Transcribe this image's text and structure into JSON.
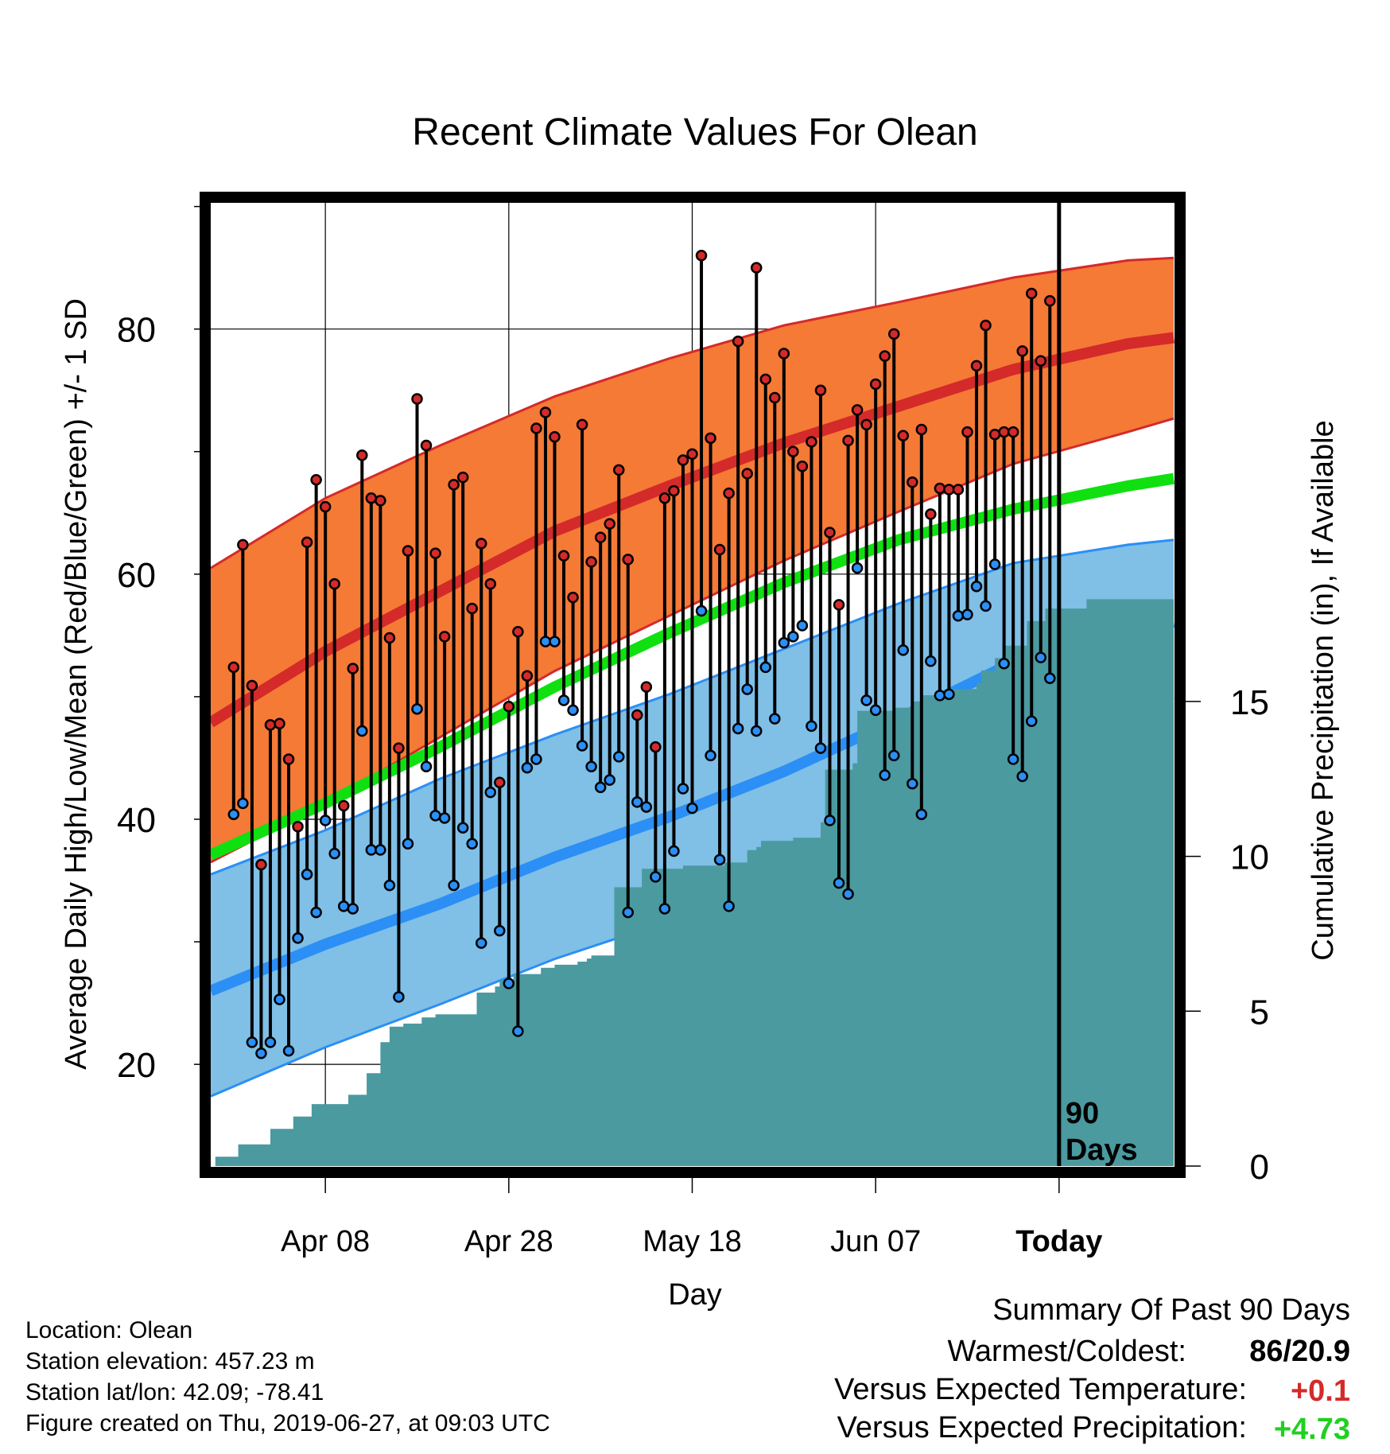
{
  "chart_data": {
    "type": "line",
    "title": "Recent Climate Values For Olean",
    "xlabel": "Day",
    "ylabel": "Average Daily High/Low/Mean (Red/Blue/Green) +/- 1 SD",
    "y2label": "Cumulative Precipitation (in), If Available",
    "x_range": [
      -21,
      21
    ],
    "ylim": [
      11.7,
      90.3
    ],
    "y2lim": [
      0,
      31.1
    ],
    "yticks": [
      20,
      40,
      60,
      80
    ],
    "y2ticks": [
      0,
      5,
      10,
      15
    ],
    "xtick_positions": [
      -16,
      -8,
      0,
      8,
      16
    ],
    "xtick_labels": [
      "Apr 08",
      "Apr 28",
      "May 18",
      "Jun 07",
      "Today"
    ],
    "today_x": 16,
    "period_label": "90 Days",
    "grid": true,
    "colors": {
      "high_band": "#f47a36",
      "high_line": "#d42a2a",
      "low_band": "#80bfe6",
      "low_line": "#2b8ff5",
      "low_band_edge": "#2b8ff5",
      "mean_line": "#10e010",
      "precip": "#4a9aa0",
      "high_point": "#d42a2a",
      "low_point": "#2b8ff5"
    },
    "normals": {
      "x": [
        -21,
        -16,
        -11,
        -6,
        -1,
        4,
        9,
        14,
        19,
        21
      ],
      "high_mean": [
        47.9,
        53.7,
        58.6,
        63.5,
        67.2,
        70.7,
        73.7,
        76.7,
        78.8,
        79.3
      ],
      "high_upper": [
        60.5,
        66.2,
        70.5,
        74.5,
        77.6,
        80.3,
        82.2,
        84.2,
        85.6,
        85.8
      ],
      "high_lower": [
        36.5,
        41.3,
        46.7,
        52.1,
        56.6,
        61.1,
        65.1,
        69.0,
        71.6,
        72.7
      ],
      "mean": [
        37.1,
        41.3,
        45.9,
        50.8,
        55.2,
        59.3,
        62.8,
        65.3,
        67.2,
        67.8
      ],
      "low_mean": [
        26.0,
        29.8,
        33.1,
        36.9,
        40.2,
        43.9,
        48.2,
        52.8,
        55.6,
        56.1
      ],
      "low_upper": [
        35.5,
        39.1,
        43.3,
        46.9,
        50.2,
        53.9,
        57.6,
        60.9,
        62.4,
        62.8
      ],
      "low_lower": [
        17.4,
        21.4,
        24.9,
        28.6,
        31.7,
        35.2,
        39.4,
        44.8,
        48.7,
        49.9
      ]
    },
    "daily": {
      "x_start": -20.0,
      "x_step": 0.4,
      "high": [
        52.4,
        62.4,
        50.9,
        36.3,
        47.7,
        47.8,
        44.9,
        39.4,
        62.6,
        67.7,
        65.5,
        59.2,
        41.1,
        52.3,
        69.7,
        66.2,
        66.0,
        54.8,
        45.8,
        61.9,
        74.3,
        70.5,
        61.7,
        54.9,
        67.3,
        67.9,
        57.2,
        62.5,
        59.2,
        43.0,
        49.2,
        55.3,
        51.7,
        71.9,
        73.2,
        71.2,
        61.5,
        58.1,
        72.2,
        61.0,
        63.0,
        64.1,
        68.5,
        61.2,
        48.5,
        50.8,
        45.9,
        66.2,
        66.8,
        69.3,
        69.8,
        86.0,
        71.1,
        62.0,
        66.6,
        79.0,
        68.2,
        85.0,
        75.9,
        74.4,
        78.0,
        70.0,
        68.8,
        70.8,
        75.0,
        63.4,
        57.5,
        70.9,
        73.4,
        72.2,
        75.5,
        77.8,
        79.6,
        71.3,
        67.5,
        71.8,
        64.9,
        67.0,
        66.9,
        66.9,
        71.6,
        77.0,
        80.3,
        71.4,
        71.6,
        71.6,
        78.2,
        82.9,
        77.4,
        82.3
      ],
      "low": [
        40.4,
        41.3,
        21.8,
        20.9,
        21.8,
        25.3,
        21.1,
        30.3,
        35.5,
        32.4,
        39.9,
        37.2,
        32.9,
        32.7,
        47.2,
        37.5,
        37.5,
        34.6,
        25.5,
        38.0,
        49.0,
        44.3,
        40.3,
        40.1,
        34.6,
        39.3,
        38.0,
        29.9,
        42.2,
        30.9,
        26.6,
        22.7,
        44.2,
        44.9,
        54.5,
        54.5,
        49.7,
        48.9,
        46.0,
        44.3,
        42.6,
        43.2,
        45.1,
        32.4,
        41.4,
        41.0,
        35.3,
        32.7,
        37.4,
        42.5,
        40.9,
        57.0,
        45.2,
        36.7,
        32.9,
        47.4,
        50.6,
        47.2,
        52.4,
        48.2,
        54.4,
        54.9,
        55.8,
        47.6,
        45.8,
        39.9,
        34.8,
        33.9,
        60.5,
        49.7,
        48.9,
        43.6,
        45.2,
        53.8,
        42.9,
        40.4,
        52.9,
        50.1,
        50.2,
        56.6,
        56.7,
        59.0,
        57.4,
        60.8,
        52.7,
        44.9,
        43.5,
        48.0,
        53.2,
        51.5
      ]
    },
    "precip": {
      "x": [
        -20.8,
        -19.8,
        -18.4,
        -17.4,
        -16.6,
        -16.0,
        -15.0,
        -14.2,
        -14.0,
        -13.6,
        -13.2,
        -12.6,
        -11.8,
        -11.2,
        -10.6,
        -9.4,
        -8.6,
        -8.4,
        -7.8,
        -6.6,
        -6.0,
        -5.6,
        -5.0,
        -4.6,
        -4.4,
        -3.4,
        -2.2,
        -1.2,
        -0.4,
        1.4,
        2.4,
        2.8,
        3.0,
        4.4,
        5.6,
        5.8,
        7.0,
        7.2,
        8.8,
        9.6,
        10.0,
        11.2,
        11.8,
        12.4,
        12.6,
        13.2,
        13.6,
        14.6,
        15.4,
        16.0,
        17.2,
        19.6,
        20.8,
        21.0
      ],
      "y": [
        0.3,
        0.7,
        1.2,
        1.6,
        2.0,
        2.0,
        2.3,
        3.0,
        3.0,
        4.0,
        4.5,
        4.6,
        4.8,
        4.9,
        4.9,
        5.6,
        5.8,
        6.0,
        6.2,
        6.4,
        6.5,
        6.5,
        6.6,
        6.7,
        6.8,
        9.0,
        9.6,
        9.6,
        9.7,
        9.8,
        10.2,
        10.3,
        10.5,
        10.6,
        11.1,
        12.8,
        13.0,
        14.7,
        14.8,
        15.0,
        15.2,
        15.4,
        15.4,
        15.6,
        16.0,
        16.4,
        16.8,
        17.6,
        18.0,
        18.0,
        18.3,
        18.3,
        18.3,
        18.3
      ]
    }
  },
  "info": {
    "location": "Location: Olean",
    "elevation": "Station elevation: 457.23 m",
    "latlon": "Station lat/lon: 42.09; -78.41",
    "created": "Figure created on Thu, 2019-06-27, at 09:03 UTC"
  },
  "summary": {
    "title": "Summary Of Past 90 Days",
    "warmest_label": "Warmest/Coldest:",
    "warmest_value": "86/20.9",
    "temp_label": "Versus Expected Temperature:",
    "temp_value": "+0.1",
    "temp_color": "#d42a2a",
    "precip_label": "Versus Expected Precipitation:",
    "precip_value": "+4.73",
    "precip_color": "#20d020"
  }
}
